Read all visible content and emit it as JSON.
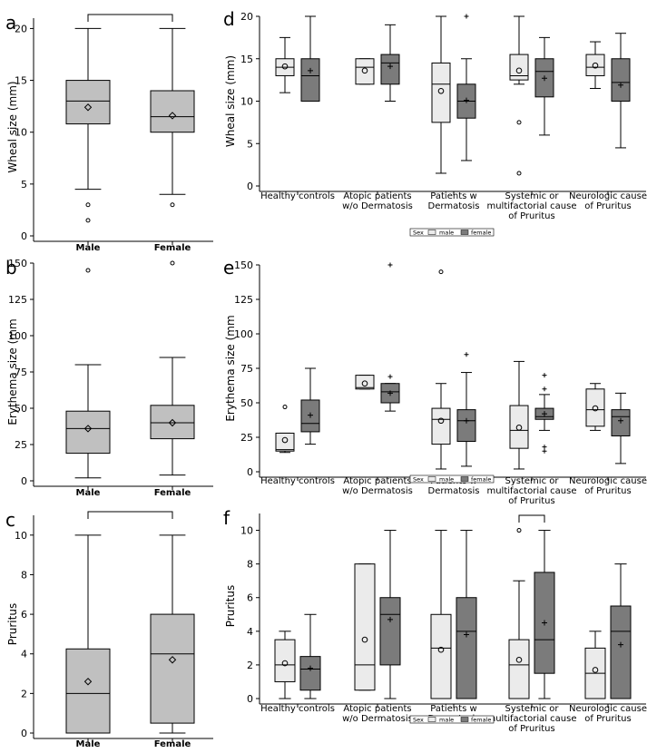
{
  "chart_data": [
    {
      "id": "a",
      "type": "box",
      "letter": "a",
      "ylabel": "Wheal size (mm)",
      "ylim": [
        0,
        21
      ],
      "yticks": [
        0,
        5,
        10,
        15,
        20
      ],
      "categories": [
        "Male",
        "Female"
      ],
      "boxes": [
        {
          "category": "Male",
          "min": 4.5,
          "q1": 10.8,
          "median": 13,
          "q3": 15,
          "max": 20,
          "mean": 12.4,
          "outliers": [
            3,
            1.5
          ]
        },
        {
          "category": "Female",
          "min": 4,
          "q1": 10,
          "median": 11.5,
          "q3": 14,
          "max": 20,
          "mean": 11.6,
          "outliers": [
            3
          ]
        }
      ],
      "significance_bracket": true
    },
    {
      "id": "b",
      "type": "box",
      "letter": "b",
      "ylabel": "Erythema size (mm",
      "ylim": [
        0,
        150
      ],
      "yticks": [
        0,
        25,
        50,
        75,
        100,
        125,
        150
      ],
      "categories": [
        "Male",
        "Female"
      ],
      "boxes": [
        {
          "category": "Male",
          "min": 2,
          "q1": 19,
          "median": 36,
          "q3": 48,
          "max": 80,
          "mean": 36,
          "outliers": [
            145
          ]
        },
        {
          "category": "Female",
          "min": 4,
          "q1": 29,
          "median": 40,
          "q3": 52,
          "max": 85,
          "mean": 40,
          "outliers": [
            150
          ]
        }
      ],
      "significance_bracket": false
    },
    {
      "id": "c",
      "type": "box",
      "letter": "c",
      "ylabel": "Pruritus",
      "ylim": [
        0,
        11
      ],
      "yticks": [
        0,
        2,
        4,
        6,
        8,
        10
      ],
      "categories": [
        "Male",
        "Female"
      ],
      "boxes": [
        {
          "category": "Male",
          "min": 0,
          "q1": 0,
          "median": 2,
          "q3": 4.25,
          "max": 10,
          "mean": 2.6,
          "outliers": []
        },
        {
          "category": "Female",
          "min": 0,
          "q1": 0.5,
          "median": 4,
          "q3": 6,
          "max": 10,
          "mean": 3.7,
          "outliers": []
        }
      ],
      "significance_bracket": true
    },
    {
      "id": "d",
      "type": "box",
      "letter": "d",
      "ylabel": "Wheal size (mm)",
      "ylim": [
        0,
        20
      ],
      "yticks": [
        0,
        5,
        10,
        15,
        20
      ],
      "categories": [
        "Healthy controls",
        "Atopic patients\nw/o Dermatosis",
        "Patients w\nDermatosis",
        "Systemic or\nmultifactorial cause\nof Pruritus",
        "Neurologic cause\nof Pruritus"
      ],
      "series": [
        {
          "name": "male",
          "boxes": [
            {
              "min": 11,
              "q1": 13,
              "median": 14,
              "q3": 15,
              "max": 17.5,
              "mean": 14.1,
              "outliers": []
            },
            {
              "min": 12,
              "q1": 12,
              "median": 14,
              "q3": 15,
              "max": 15,
              "mean": 13.6,
              "outliers": []
            },
            {
              "min": 1.5,
              "q1": 7.5,
              "median": 12,
              "q3": 14.5,
              "max": 20,
              "mean": 11.2,
              "outliers": []
            },
            {
              "min": 12,
              "q1": 12.5,
              "median": 13,
              "q3": 15.5,
              "max": 20,
              "mean": 13.6,
              "outliers": [
                7.5,
                1.5
              ]
            },
            {
              "min": 11.5,
              "q1": 13,
              "median": 14,
              "q3": 15.5,
              "max": 17,
              "mean": 14.2,
              "outliers": []
            }
          ]
        },
        {
          "name": "female",
          "boxes": [
            {
              "min": 10,
              "q1": 10,
              "median": 13,
              "q3": 15,
              "max": 20,
              "mean": 13.6,
              "outliers": []
            },
            {
              "min": 10,
              "q1": 12,
              "median": 14.5,
              "q3": 15.5,
              "max": 19,
              "mean": 14.1,
              "outliers": []
            },
            {
              "min": 3,
              "q1": 8,
              "median": 10,
              "q3": 12,
              "max": 15,
              "mean": 10.1,
              "outliers": [
                20
              ]
            },
            {
              "min": 6,
              "q1": 10.5,
              "median": 13.5,
              "q3": 15,
              "max": 17.5,
              "mean": 12.7,
              "outliers": []
            },
            {
              "min": 4.5,
              "q1": 10,
              "median": 12.2,
              "q3": 15,
              "max": 18,
              "mean": 11.9,
              "outliers": []
            }
          ]
        }
      ],
      "legend": {
        "title": "Sex",
        "items": [
          "male",
          "female"
        ]
      }
    },
    {
      "id": "e",
      "type": "box",
      "letter": "e",
      "ylabel": "Erythema size (mm",
      "ylim": [
        0,
        150
      ],
      "yticks": [
        0,
        25,
        50,
        75,
        100,
        125,
        150
      ],
      "categories": [
        "Healthy controls",
        "Atopic patients\nw/o Dermatosis",
        "Patients w\nDermatosis",
        "Systemic or\nmultifactorial cause\nof Pruritus",
        "Neurologic cause\nof Pruritus"
      ],
      "series": [
        {
          "name": "male",
          "boxes": [
            {
              "min": 14,
              "q1": 15,
              "median": 16,
              "q3": 28,
              "max": 28,
              "mean": 23,
              "outliers": [
                47
              ]
            },
            {
              "min": 60,
              "q1": 60,
              "median": 61,
              "q3": 70,
              "max": 70,
              "mean": 64,
              "outliers": []
            },
            {
              "min": 2,
              "q1": 20,
              "median": 38,
              "q3": 46,
              "max": 64,
              "mean": 37,
              "outliers": [
                145
              ]
            },
            {
              "min": 2,
              "q1": 17,
              "median": 30,
              "q3": 48,
              "max": 80,
              "mean": 32,
              "outliers": []
            },
            {
              "min": 30,
              "q1": 33,
              "median": 45,
              "q3": 60,
              "max": 64,
              "mean": 46,
              "outliers": []
            }
          ]
        },
        {
          "name": "female",
          "boxes": [
            {
              "min": 20,
              "q1": 29,
              "median": 35,
              "q3": 52,
              "max": 75,
              "mean": 41,
              "outliers": []
            },
            {
              "min": 44,
              "q1": 50,
              "median": 58,
              "q3": 64,
              "max": 64,
              "mean": 57,
              "outliers": [
                69,
                150
              ]
            },
            {
              "min": 4,
              "q1": 22,
              "median": 37,
              "q3": 45,
              "max": 72,
              "mean": 37,
              "outliers": [
                85
              ]
            },
            {
              "min": 30,
              "q1": 38,
              "median": 40,
              "q3": 46,
              "max": 56,
              "mean": 42,
              "outliers": [
                60,
                70,
                15,
                18
              ]
            },
            {
              "min": 6,
              "q1": 26,
              "median": 40,
              "q3": 45,
              "max": 57,
              "mean": 37,
              "outliers": []
            }
          ]
        }
      ],
      "legend": {
        "title": "Sex",
        "items": [
          "male",
          "female"
        ]
      }
    },
    {
      "id": "f",
      "type": "box",
      "letter": "f",
      "ylabel": "Pruritus",
      "ylim": [
        0,
        11
      ],
      "yticks": [
        0,
        2,
        4,
        6,
        8,
        10
      ],
      "categories": [
        "Healthy controls",
        "Atopic patients\nw/o Dermatosis",
        "Patients w\nDermatosis",
        "Systemic or\nmultifactorial cause\nof Pruritus",
        "Neurologic cause\nof Pruritus"
      ],
      "series": [
        {
          "name": "male",
          "boxes": [
            {
              "min": 0,
              "q1": 1,
              "median": 2,
              "q3": 3.5,
              "max": 4,
              "mean": 2.1,
              "outliers": []
            },
            {
              "min": 0.5,
              "q1": 0.5,
              "median": 2,
              "q3": 8,
              "max": 8,
              "mean": 3.5,
              "outliers": []
            },
            {
              "min": 0,
              "q1": 0,
              "median": 3,
              "q3": 5,
              "max": 10,
              "mean": 2.9,
              "outliers": []
            },
            {
              "min": 0,
              "q1": 0,
              "median": 2,
              "q3": 3.5,
              "max": 7,
              "mean": 2.3,
              "outliers": [
                10
              ]
            },
            {
              "min": 0,
              "q1": 0,
              "median": 1.5,
              "q3": 3,
              "max": 4,
              "mean": 1.7,
              "outliers": []
            }
          ]
        },
        {
          "name": "female",
          "boxes": [
            {
              "min": 0,
              "q1": 0.5,
              "median": 1.75,
              "q3": 2.5,
              "max": 5,
              "mean": 1.8,
              "outliers": []
            },
            {
              "min": 0,
              "q1": 2,
              "median": 5,
              "q3": 6,
              "max": 10,
              "mean": 4.7,
              "outliers": []
            },
            {
              "min": 0,
              "q1": 0,
              "median": 4,
              "q3": 6,
              "max": 10,
              "mean": 3.8,
              "outliers": []
            },
            {
              "min": 0,
              "q1": 1.5,
              "median": 3.5,
              "q3": 7.5,
              "max": 10,
              "mean": 4.5,
              "outliers": []
            },
            {
              "min": 0,
              "q1": 0,
              "median": 4,
              "q3": 5.5,
              "max": 8,
              "mean": 3.2,
              "outliers": []
            }
          ]
        }
      ],
      "legend": {
        "title": "Sex",
        "items": [
          "male",
          "female"
        ]
      },
      "bracket_group": 3
    }
  ],
  "colors": {
    "gender_box": "#c0c0c0",
    "male": "#ebebeb",
    "female": "#7b7b7b"
  }
}
